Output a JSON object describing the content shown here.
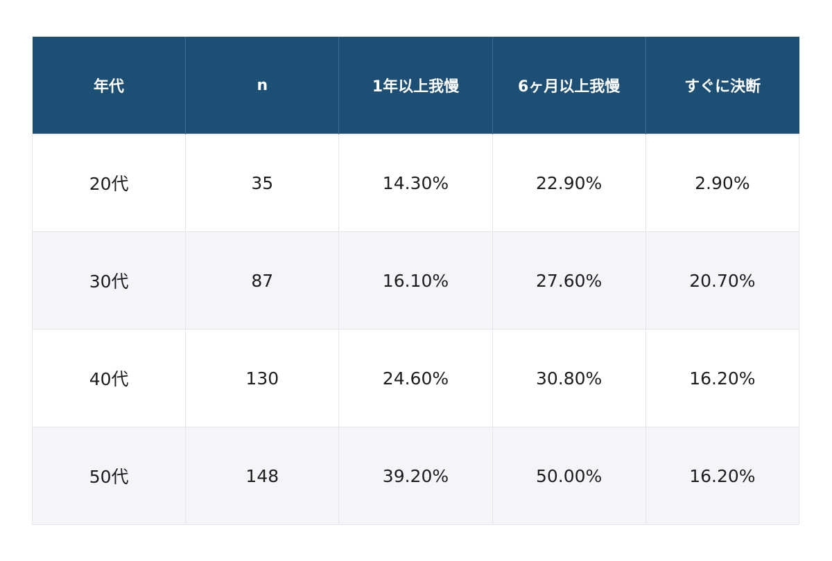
{
  "chart_data": {
    "type": "table",
    "columns": [
      "年代",
      "n",
      "1年以上我慢",
      "6ヶ月以上我慢",
      "すぐに決断"
    ],
    "rows": [
      [
        "20代",
        "35",
        "14.30%",
        "22.90%",
        "2.90%"
      ],
      [
        "30代",
        "87",
        "16.10%",
        "27.60%",
        "20.70%"
      ],
      [
        "40代",
        "130",
        "24.60%",
        "30.80%",
        "16.20%"
      ],
      [
        "50代",
        "148",
        "39.20%",
        "50.00%",
        "16.20%"
      ]
    ]
  },
  "colors": {
    "header_bg": "#1d4f75",
    "header_text": "#ffffff",
    "row_alt_bg": "#f5f4f8",
    "cell_text": "#1c1c1c"
  }
}
